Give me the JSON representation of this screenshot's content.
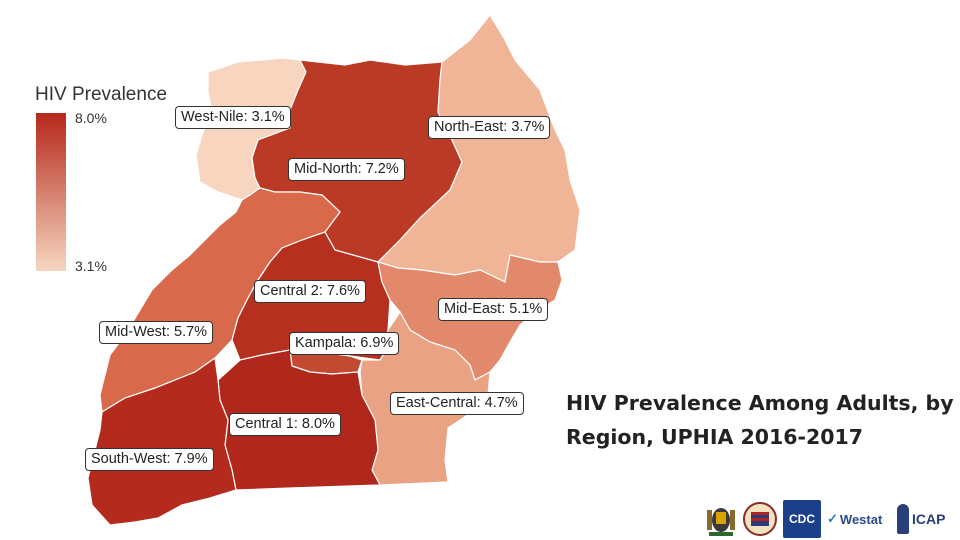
{
  "slide_title": "HIV Prevalence Among Adults, by Region, UPHIA 2016-2017",
  "legend": {
    "title": "HIV Prevalence",
    "max_label": "8.0%",
    "min_label": "3.1%",
    "max_color": "#b5271a",
    "min_color": "#f6d6c1"
  },
  "map_data": {
    "type": "choropleth",
    "regions": [
      {
        "id": "west-nile",
        "name": "West-Nile",
        "value": 3.1,
        "label": "West-Nile: 3.1%",
        "color": "#f7d5bf"
      },
      {
        "id": "north-east",
        "name": "North-East",
        "value": 3.7,
        "label": "North-East: 3.7%",
        "color": "#f0b496"
      },
      {
        "id": "mid-north",
        "name": "Mid-North",
        "value": 7.2,
        "label": "Mid-North: 7.2%",
        "color": "#ba3a26"
      },
      {
        "id": "central-2",
        "name": "Central 2",
        "value": 7.6,
        "label": "Central 2: 7.6%",
        "color": "#b5301f"
      },
      {
        "id": "mid-east",
        "name": "Mid-East",
        "value": 5.1,
        "label": "Mid-East: 5.1%",
        "color": "#e1896a"
      },
      {
        "id": "mid-west",
        "name": "Mid-West",
        "value": 5.7,
        "label": "Mid-West: 5.7%",
        "color": "#d8694a"
      },
      {
        "id": "kampala",
        "name": "Kampala",
        "value": 6.9,
        "label": "Kampala: 6.9%",
        "color": "#c24a30"
      },
      {
        "id": "east-central",
        "name": "East-Central",
        "value": 4.7,
        "label": "East-Central: 4.7%",
        "color": "#e9a283"
      },
      {
        "id": "central-1",
        "name": "Central 1",
        "value": 8.0,
        "label": "Central 1: 8.0%",
        "color": "#b0281c"
      },
      {
        "id": "south-west",
        "name": "South-West",
        "value": 7.9,
        "label": "South-West: 7.9%",
        "color": "#b42a1d"
      }
    ]
  },
  "logos": [
    {
      "name": "uganda-coat-of-arms-logo"
    },
    {
      "name": "pepfar-logo"
    },
    {
      "name": "cdc-logo",
      "text": "CDC"
    },
    {
      "name": "westat-logo",
      "text": "Westat"
    },
    {
      "name": "icap-logo",
      "text": "ICAP"
    }
  ]
}
